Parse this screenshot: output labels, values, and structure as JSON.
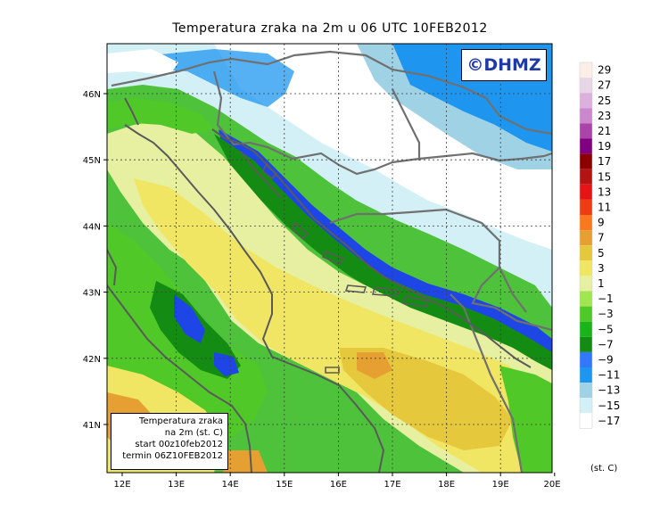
{
  "title": "Temperatura zraka na 2m u 06 UTC 10FEB2012",
  "logo_text": "©DHMZ",
  "info_box": {
    "line1": "Temperatura zraka",
    "line2": "na 2m (st. C)",
    "line3": "start 00z10feb2012",
    "line4": "termin 06Z10FEB2012"
  },
  "axes": {
    "lon_labels": [
      "12E",
      "13E",
      "14E",
      "15E",
      "16E",
      "17E",
      "18E",
      "19E",
      "20E"
    ],
    "lat_labels": [
      "46N",
      "45N",
      "44N",
      "43N",
      "42N",
      "41N"
    ]
  },
  "colorbar": {
    "labels": [
      "29",
      "27",
      "25",
      "23",
      "21",
      "19",
      "17",
      "15",
      "13",
      "11",
      "9",
      "7",
      "5",
      "3",
      "1",
      "−1",
      "−3",
      "−5",
      "−7",
      "−9",
      "−11",
      "−13",
      "−15",
      "−17"
    ],
    "unit": "(st. C)",
    "colors": [
      "#fbeee6",
      "#e6d6e6",
      "#dcb0dc",
      "#cc88cc",
      "#aa44aa",
      "#800080",
      "#8c0000",
      "#b41414",
      "#e61414",
      "#f03c14",
      "#fa781e",
      "#e6a032",
      "#e6c83c",
      "#f0e664",
      "#e6f0a0",
      "#a0e650",
      "#50c828",
      "#19b419",
      "#148c14",
      "#3278ff",
      "#1e96f0",
      "#a0d2e6",
      "#d2f0f5",
      "#ffffff"
    ],
    "ocean_color": "#f0e05a",
    "land_color": "#4ec23a"
  }
}
